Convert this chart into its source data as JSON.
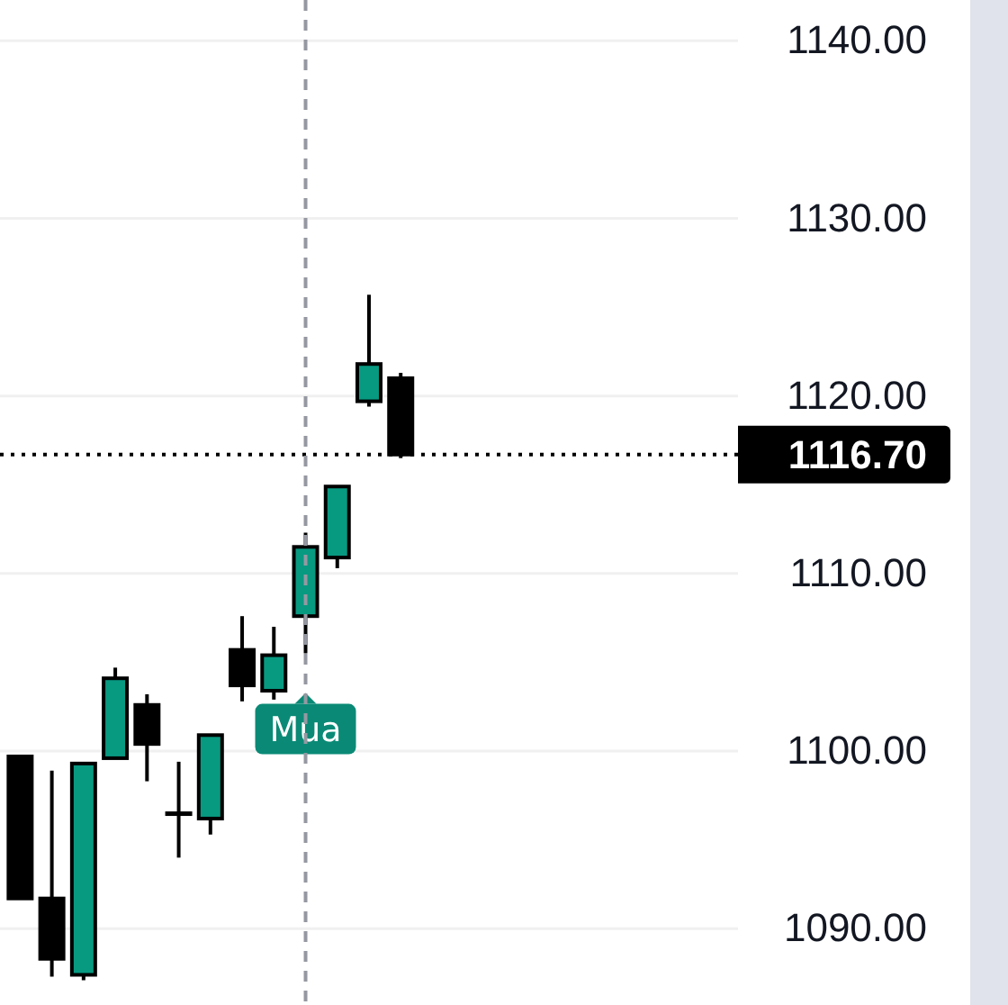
{
  "chart_data": {
    "type": "candlestick",
    "categories": [
      null,
      null,
      null,
      null,
      null,
      null,
      null,
      null,
      null,
      null,
      null,
      null,
      null,
      null,
      null,
      null,
      null,
      null,
      null,
      null,
      null,
      null,
      null
    ],
    "ohlc": [
      [
        1099.7,
        1099.7,
        1091.7,
        1091.7
      ],
      [
        1091.7,
        1098.9,
        1087.3,
        1088.3
      ],
      [
        1087.4,
        1099.3,
        1087.1,
        1099.3
      ],
      [
        1099.6,
        1104.7,
        1099.6,
        1104.1
      ],
      [
        1102.6,
        1103.2,
        1098.3,
        1100.4
      ],
      [
        1096.5,
        1099.4,
        1094.0,
        1096.5
      ],
      [
        1096.2,
        1100.9,
        1095.3,
        1100.9
      ],
      [
        1105.7,
        1107.6,
        1102.8,
        1103.7
      ],
      [
        1103.4,
        1107.0,
        1102.9,
        1105.4
      ],
      [
        1107.6,
        1112.3,
        1105.5,
        1111.5
      ],
      [
        1110.9,
        1114.9,
        1110.3,
        1114.9
      ],
      [
        1119.7,
        1125.7,
        1119.4,
        1121.8
      ],
      [
        1121.0,
        1121.3,
        1116.5,
        1116.7
      ],
      null,
      null,
      null,
      null,
      null,
      null,
      null,
      null,
      null,
      null
    ],
    "colors": [
      "#000000",
      "#000000",
      "#089981",
      "#089981",
      "#000000",
      "#000000",
      "#089981",
      "#000000",
      "#089981",
      "#089981",
      "#089981",
      "#089981",
      "#000000",
      null,
      null,
      null,
      null,
      null,
      null,
      null,
      null,
      null,
      null
    ],
    "ylim": [
      1085.7,
      1142.3
    ],
    "yticks": [
      {
        "value": 1090,
        "label": "1090.00"
      },
      {
        "value": 1100,
        "label": "1100.00"
      },
      {
        "value": 1110,
        "label": "1110.00"
      },
      {
        "value": 1120,
        "label": "1120.00"
      },
      {
        "value": 1130,
        "label": "1130.00"
      },
      {
        "value": 1140,
        "label": "1140.00"
      }
    ],
    "grid": "y",
    "tick_labels": "y",
    "annotations": [
      "Mua"
    ],
    "ref_lines": [
      {
        "axis": "y",
        "value": 1116.7,
        "label": "1116.70",
        "color": "#000000",
        "line_style": "dotted"
      }
    ]
  }
}
